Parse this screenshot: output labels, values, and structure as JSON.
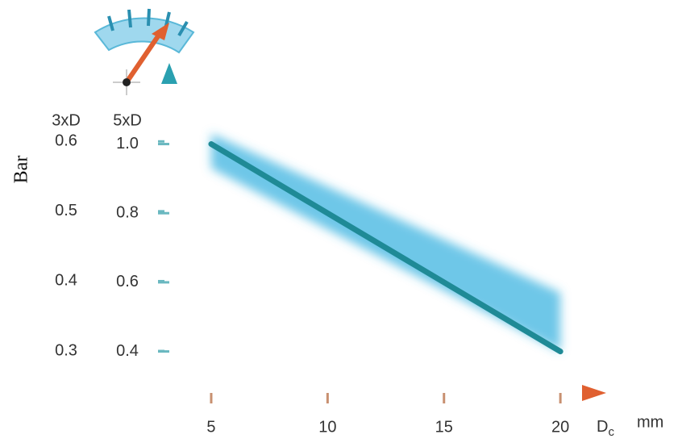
{
  "chart_data": {
    "type": "line",
    "y_label": "Bar",
    "y_header": "5xD",
    "y2_header": "3xD",
    "x_label": {
      "main": "D",
      "sub": "c"
    },
    "x_unit": "mm",
    "xlim": [
      3.2,
      21.9
    ],
    "xticks": [
      5,
      10,
      15,
      20
    ],
    "ylim": [
      0.28,
      1.23
    ],
    "yticks": [
      {
        "value": 1,
        "label": "1.0"
      },
      0.8,
      0.6,
      0.4
    ],
    "y2lim": [
      0.24,
      0.71
    ],
    "y2ticks": [
      0.6,
      0.5,
      0.4,
      0.3
    ],
    "series": [
      {
        "color": "#1f8a96",
        "x": [
          5,
          20
        ],
        "values": [
          1.0,
          0.4
        ]
      }
    ],
    "band": {
      "color": "#3cb4e0",
      "x": [
        5,
        20
      ],
      "upper": [
        1.03,
        0.57
      ],
      "lower": [
        0.93,
        0.4
      ]
    }
  }
}
